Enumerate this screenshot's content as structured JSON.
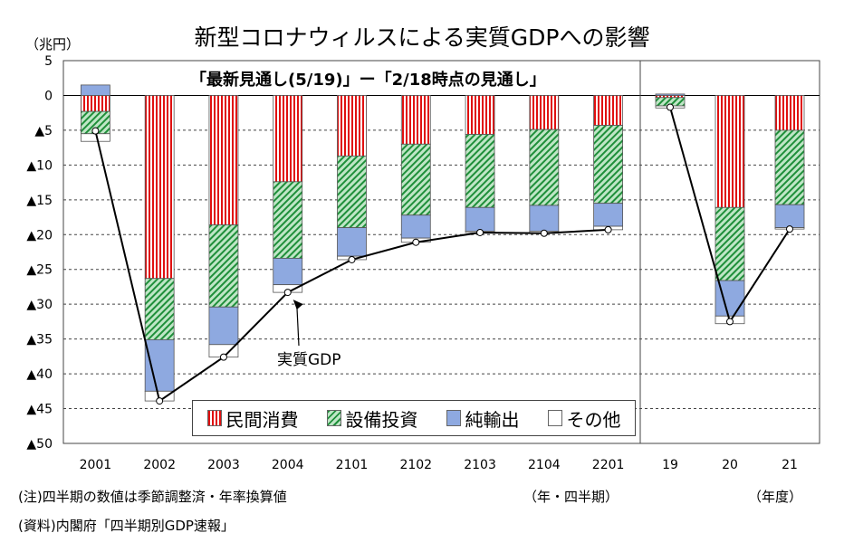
{
  "title": "新型コロナウィルスによる実質GDPへの影響",
  "y_unit": "（兆円）",
  "subtitle": "「最新見通し(5/19)」ー「2/18時点の見通し」",
  "gdp_annotation": "実質GDP",
  "x_unit_quarter": "（年・四半期）",
  "x_unit_year": "（年度）",
  "note": "(注)四半期の数値は季節調整済・年率換算値",
  "source": "(資料)内閣府「四半期別GDP速報」",
  "legend": [
    {
      "key": "consumption",
      "label": "民間消費"
    },
    {
      "key": "investment",
      "label": "設備投資"
    },
    {
      "key": "exports",
      "label": "純輸出"
    },
    {
      "key": "other",
      "label": "その他"
    }
  ],
  "colors": {
    "consumption": "#e01010",
    "investment": "#1f8f3a",
    "investment_bg": "#bfe6c6",
    "exports": "#8ea9e0",
    "other": "#ffffff",
    "line": "#000000"
  },
  "chart_data": {
    "type": "bar",
    "stacked": true,
    "panels": [
      {
        "unit": "quarter",
        "categories": [
          "2001",
          "2002",
          "2003",
          "2004",
          "2101",
          "2102",
          "2103",
          "2104",
          "2201"
        ]
      },
      {
        "unit": "fiscal_year",
        "categories": [
          "19",
          "20",
          "21"
        ]
      }
    ],
    "categories": [
      "2001",
      "2002",
      "2003",
      "2004",
      "2101",
      "2102",
      "2103",
      "2104",
      "2201",
      "19",
      "20",
      "21"
    ],
    "series": [
      {
        "name": "民間消費",
        "key": "consumption",
        "values": [
          -2.3,
          -26.3,
          -18.6,
          -12.4,
          -8.7,
          -7.0,
          -5.6,
          -4.9,
          -4.3,
          -0.3,
          -16.1,
          -5.0
        ]
      },
      {
        "name": "設備投資",
        "key": "investment",
        "values": [
          -3.2,
          -8.8,
          -11.8,
          -11.0,
          -10.3,
          -10.2,
          -10.5,
          -10.9,
          -11.2,
          -1.2,
          -10.5,
          -10.7
        ]
      },
      {
        "name": "純輸出",
        "key": "exports",
        "values": [
          1.5,
          -7.4,
          -5.4,
          -3.8,
          -4.1,
          -3.3,
          -3.4,
          -3.7,
          -3.3,
          0.2,
          -5.1,
          -3.3
        ]
      },
      {
        "name": "その他",
        "key": "other",
        "values": [
          -1.1,
          -1.4,
          -1.8,
          -1.1,
          -0.5,
          -0.6,
          -0.2,
          -0.3,
          -0.5,
          -0.3,
          -1.1,
          -0.2
        ]
      }
    ],
    "line": {
      "name": "実質GDP",
      "values": [
        -5.1,
        -43.9,
        -37.6,
        -28.3,
        -23.6,
        -21.1,
        -19.7,
        -19.8,
        -19.3,
        -1.7,
        -32.5,
        -19.2
      ]
    },
    "ylim": [
      -50,
      5
    ],
    "yticks": [
      5,
      0,
      -5,
      -10,
      -15,
      -20,
      -25,
      -30,
      -35,
      -40,
      -45,
      -50
    ],
    "ytick_labels": [
      "5",
      "0",
      "▲5",
      "▲10",
      "▲15",
      "▲20",
      "▲25",
      "▲30",
      "▲35",
      "▲40",
      "▲45",
      "▲50"
    ],
    "grid": true,
    "legend_position": "bottom"
  }
}
